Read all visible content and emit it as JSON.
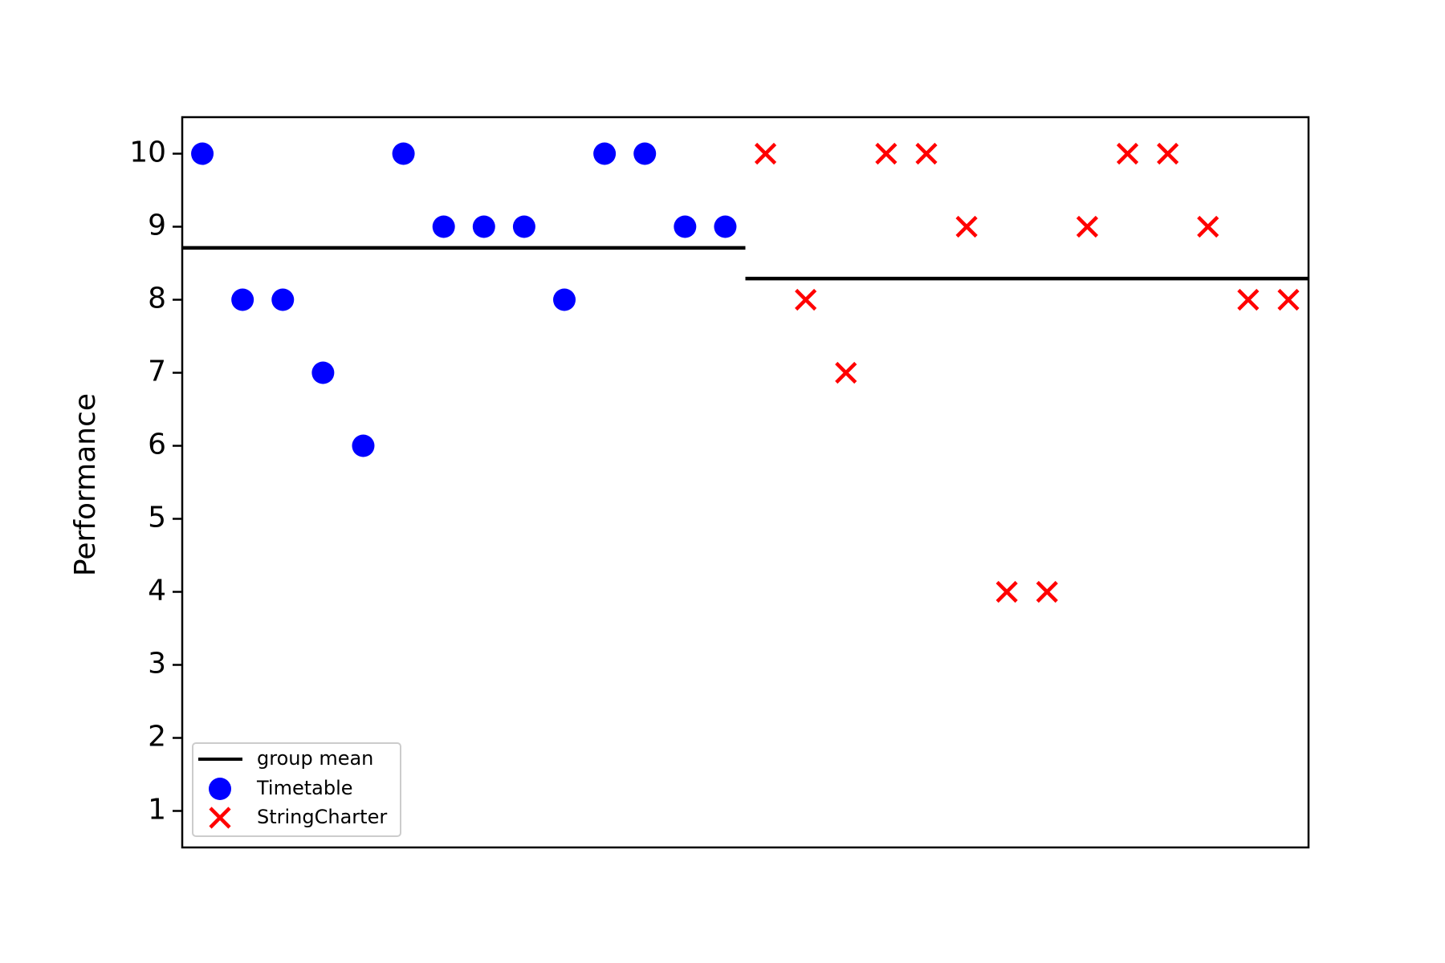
{
  "chart_data": {
    "type": "scatter",
    "ylabel": "Performance",
    "xlabel": "",
    "ylim": [
      0.5,
      10.5
    ],
    "xlim": [
      0.5,
      28.5
    ],
    "yticks": [
      1,
      2,
      3,
      4,
      5,
      6,
      7,
      8,
      9,
      10
    ],
    "xticks_visible": false,
    "grid": false,
    "legend_position": "lower-left",
    "series": [
      {
        "name": "Timetable",
        "marker": "circle",
        "color": "#0000ff",
        "x": [
          1,
          2,
          3,
          4,
          5,
          6,
          7,
          8,
          9,
          10,
          11,
          12,
          13,
          14
        ],
        "values": [
          10,
          8,
          8,
          7,
          6,
          10,
          9,
          9,
          9,
          8,
          10,
          10,
          9,
          9
        ],
        "mean": 8.71
      },
      {
        "name": "StringCharter",
        "marker": "x",
        "color": "#ff0000",
        "x": [
          15,
          16,
          17,
          18,
          19,
          20,
          21,
          22,
          23,
          24,
          25,
          26,
          27,
          28
        ],
        "values": [
          10,
          8,
          7,
          10,
          10,
          9,
          4,
          4,
          9,
          10,
          10,
          9,
          8,
          8
        ],
        "mean": 8.29
      }
    ],
    "mean_line": {
      "name": "group mean",
      "color": "#000000"
    }
  }
}
